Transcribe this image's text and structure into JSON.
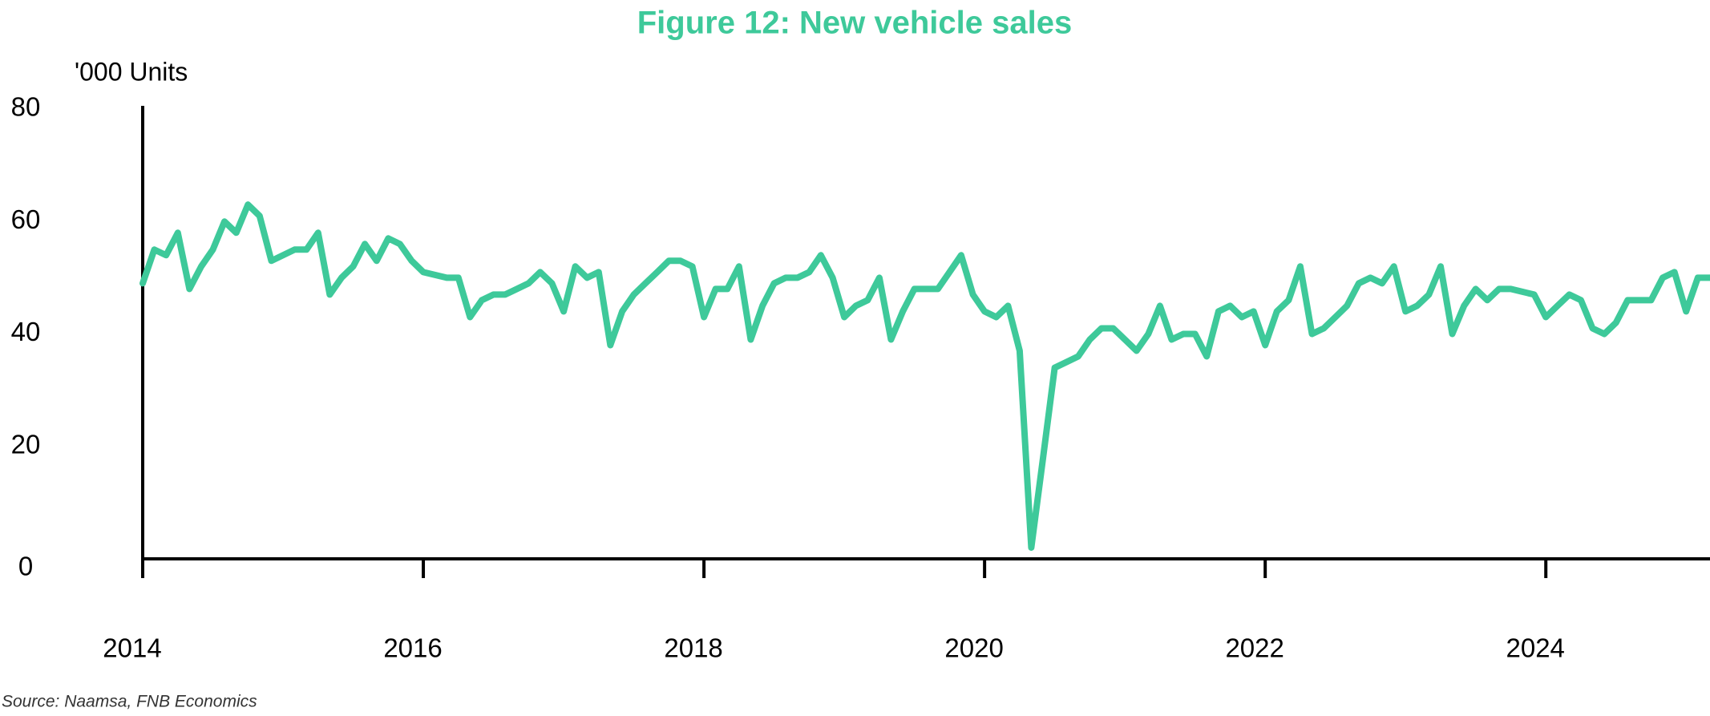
{
  "chart_data": {
    "type": "line",
    "title": "Figure 12: New vehicle sales",
    "y_label": "'000 Units",
    "source": "Source: Naamsa, FNB Economics",
    "color": "#3ec99a",
    "xlim": [
      2014,
      2025.17
    ],
    "xticks": [
      2014,
      2016,
      2018,
      2020,
      2022,
      2024
    ],
    "ylim": [
      0,
      80
    ],
    "yticks": [
      0,
      20,
      40,
      60,
      80
    ],
    "x": [
      2014,
      2014.083,
      2014.167,
      2014.25,
      2014.333,
      2014.417,
      2014.5,
      2014.583,
      2014.667,
      2014.75,
      2014.833,
      2014.917,
      2015,
      2015.083,
      2015.167,
      2015.25,
      2015.333,
      2015.417,
      2015.5,
      2015.583,
      2015.667,
      2015.75,
      2015.833,
      2015.917,
      2016,
      2016.083,
      2016.167,
      2016.25,
      2016.333,
      2016.417,
      2016.5,
      2016.583,
      2016.667,
      2016.75,
      2016.833,
      2016.917,
      2017,
      2017.083,
      2017.167,
      2017.25,
      2017.333,
      2017.417,
      2017.5,
      2017.583,
      2017.667,
      2017.75,
      2017.833,
      2017.917,
      2018,
      2018.083,
      2018.167,
      2018.25,
      2018.333,
      2018.417,
      2018.5,
      2018.583,
      2018.667,
      2018.75,
      2018.833,
      2018.917,
      2019,
      2019.083,
      2019.167,
      2019.25,
      2019.333,
      2019.417,
      2019.5,
      2019.583,
      2019.667,
      2019.75,
      2019.833,
      2019.917,
      2020,
      2020.083,
      2020.167,
      2020.25,
      2020.333,
      2020.417,
      2020.5,
      2020.583,
      2020.667,
      2020.75,
      2020.833,
      2020.917,
      2021,
      2021.083,
      2021.167,
      2021.25,
      2021.333,
      2021.417,
      2021.5,
      2021.583,
      2021.667,
      2021.75,
      2021.833,
      2021.917,
      2022,
      2022.083,
      2022.167,
      2022.25,
      2022.333,
      2022.417,
      2022.5,
      2022.583,
      2022.667,
      2022.75,
      2022.833,
      2022.917,
      2023,
      2023.083,
      2023.167,
      2023.25,
      2023.333,
      2023.417,
      2023.5,
      2023.583,
      2023.667,
      2023.75,
      2023.833,
      2023.917,
      2024,
      2024.083,
      2024.167,
      2024.25,
      2024.333,
      2024.417,
      2024.5,
      2024.583,
      2024.667,
      2024.75,
      2024.833,
      2024.917,
      2025,
      2025.083,
      2025.167
    ],
    "values": [
      49,
      55,
      54,
      58,
      48,
      52,
      55,
      60,
      58,
      63,
      61,
      53,
      54,
      55,
      55,
      58,
      47,
      50,
      52,
      56,
      53,
      57,
      56,
      53,
      51,
      50.5,
      50,
      50,
      43,
      46,
      47,
      47,
      48,
      49,
      51,
      49,
      44,
      52,
      50,
      51,
      38,
      44,
      47,
      49,
      51,
      53,
      53,
      52,
      43,
      48,
      48,
      52,
      39,
      45,
      49,
      50,
      50,
      51,
      54,
      50,
      43,
      45,
      46,
      50,
      39,
      44,
      48,
      48,
      48,
      51,
      54,
      47,
      44,
      43,
      45,
      37,
      2,
      18,
      34,
      35,
      36,
      39,
      41,
      41,
      39,
      37,
      40,
      45,
      39,
      40,
      40,
      36,
      44,
      45,
      43,
      44,
      38,
      44,
      46,
      52,
      40,
      41,
      43,
      45,
      49,
      50,
      49,
      52,
      44,
      45,
      47,
      52,
      40,
      45,
      48,
      46,
      48,
      48,
      47.5,
      47,
      43,
      45,
      47,
      46,
      41,
      40,
      42,
      46,
      46,
      46,
      50,
      51,
      44,
      50,
      50
    ]
  }
}
